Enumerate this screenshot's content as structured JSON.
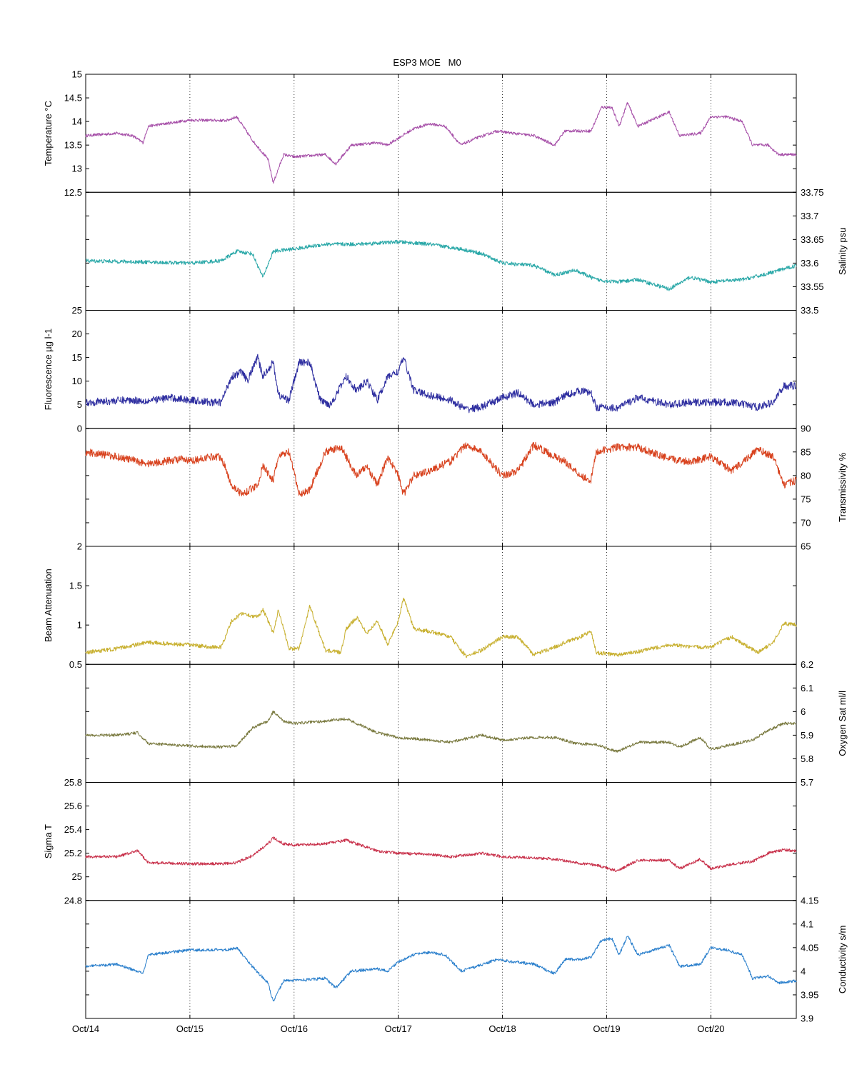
{
  "chart_data": {
    "type": "line",
    "title": "ESP3 MOE   M0",
    "x_tick_labels": [
      "Oct/14",
      "Oct/15",
      "Oct/16",
      "Oct/17",
      "Oct/18",
      "Oct/19",
      "Oct/20"
    ],
    "x_range_days": [
      0,
      6.82
    ],
    "grid": "vertical dotted at day ticks",
    "panels": [
      {
        "id": "temperature",
        "ylabel": "Temperature °C",
        "axis_side": "left",
        "color": "#a64fa8",
        "ylim": [
          12.5,
          15
        ],
        "ytick_labels": [
          "12.5",
          "13",
          "13.5",
          "14",
          "14.5",
          "15"
        ],
        "noise": 0.03,
        "x": [
          0,
          0.3,
          0.45,
          0.55,
          0.6,
          1.0,
          1.35,
          1.45,
          1.6,
          1.75,
          1.8,
          1.9,
          2.0,
          2.3,
          2.4,
          2.55,
          2.8,
          2.9,
          3.0,
          3.15,
          3.3,
          3.45,
          3.6,
          3.75,
          3.95,
          4.1,
          4.3,
          4.5,
          4.6,
          4.75,
          4.85,
          4.95,
          5.05,
          5.12,
          5.2,
          5.3,
          5.6,
          5.7,
          5.9,
          6.0,
          6.15,
          6.3,
          6.4,
          6.55,
          6.65,
          6.82
        ],
        "y": [
          13.7,
          13.75,
          13.7,
          13.55,
          13.9,
          14.03,
          14.02,
          14.1,
          13.6,
          13.2,
          12.7,
          13.3,
          13.25,
          13.3,
          13.1,
          13.5,
          13.55,
          13.5,
          13.65,
          13.85,
          13.95,
          13.9,
          13.5,
          13.65,
          13.8,
          13.75,
          13.7,
          13.5,
          13.8,
          13.8,
          13.8,
          14.3,
          14.3,
          13.9,
          14.4,
          13.9,
          14.2,
          13.7,
          13.75,
          14.1,
          14.1,
          14.0,
          13.5,
          13.5,
          13.3,
          13.3
        ]
      },
      {
        "id": "salinity",
        "ylabel": "Salinity psu",
        "axis_side": "right",
        "color": "#2aa8a8",
        "ylim": [
          33.5,
          33.75
        ],
        "ytick_labels": [
          "33.5",
          "33.55",
          "33.6",
          "33.65",
          "33.7",
          "33.75"
        ],
        "noise": 0.004,
        "x": [
          0,
          1.0,
          1.3,
          1.45,
          1.6,
          1.7,
          1.8,
          2.0,
          2.3,
          2.6,
          3.0,
          3.3,
          3.6,
          3.8,
          4.0,
          4.3,
          4.5,
          4.7,
          4.9,
          5.1,
          5.3,
          5.6,
          5.8,
          6.0,
          6.3,
          6.5,
          6.82
        ],
        "y": [
          33.605,
          33.6,
          33.605,
          33.625,
          33.62,
          33.57,
          33.625,
          33.63,
          33.64,
          33.64,
          33.645,
          33.64,
          33.63,
          33.62,
          33.6,
          33.595,
          33.575,
          33.585,
          33.565,
          33.56,
          33.565,
          33.545,
          33.57,
          33.56,
          33.565,
          33.575,
          33.595
        ]
      },
      {
        "id": "fluorescence",
        "ylabel": "Fluorescence µg l-1",
        "axis_side": "left",
        "color": "#2e2ea0",
        "ylim": [
          0,
          25
        ],
        "ytick_labels": [
          "0",
          "5",
          "10",
          "15",
          "20",
          "25"
        ],
        "noise": 0.8,
        "x": [
          0,
          0.4,
          0.6,
          0.8,
          1.0,
          1.2,
          1.3,
          1.4,
          1.5,
          1.55,
          1.65,
          1.7,
          1.8,
          1.85,
          1.95,
          2.05,
          2.15,
          2.25,
          2.35,
          2.5,
          2.6,
          2.7,
          2.8,
          2.9,
          3.0,
          3.05,
          3.15,
          3.3,
          3.5,
          3.65,
          3.8,
          4.0,
          4.15,
          4.3,
          4.5,
          4.6,
          4.75,
          4.85,
          4.9,
          5.1,
          5.3,
          5.6,
          5.8,
          6.0,
          6.2,
          6.45,
          6.6,
          6.7,
          6.82
        ],
        "y": [
          5.5,
          6.0,
          5.8,
          6.5,
          6.0,
          5.5,
          5.5,
          11.0,
          12.0,
          10.0,
          15.0,
          11.0,
          14.0,
          7.0,
          6.0,
          14.0,
          14.0,
          6.0,
          5.0,
          11.0,
          8.0,
          10.0,
          6.0,
          11.0,
          12.0,
          15.0,
          8.0,
          7.0,
          6.0,
          4.0,
          4.5,
          6.5,
          7.5,
          5.0,
          5.5,
          7.0,
          8.0,
          7.5,
          4.5,
          4.3,
          6.5,
          5.0,
          5.5,
          5.5,
          5.5,
          4.5,
          5.5,
          9.0,
          9.0
        ]
      },
      {
        "id": "transmissivity",
        "ylabel": "Transmissivity %",
        "axis_side": "right",
        "color": "#d8421e",
        "ylim": [
          65,
          90
        ],
        "ytick_labels": [
          "65",
          "70",
          "75",
          "80",
          "85",
          "90"
        ],
        "noise": 0.8,
        "x": [
          0,
          0.3,
          0.6,
          0.9,
          1.0,
          1.2,
          1.3,
          1.4,
          1.5,
          1.65,
          1.7,
          1.8,
          1.85,
          1.95,
          2.05,
          2.15,
          2.3,
          2.45,
          2.5,
          2.6,
          2.7,
          2.8,
          2.9,
          3.0,
          3.05,
          3.15,
          3.3,
          3.5,
          3.65,
          3.8,
          4.0,
          4.15,
          4.3,
          4.5,
          4.6,
          4.75,
          4.85,
          4.9,
          5.1,
          5.3,
          5.6,
          5.8,
          6.0,
          6.2,
          6.45,
          6.6,
          6.7,
          6.82
        ],
        "y": [
          85.0,
          84.0,
          82.5,
          83.5,
          83.0,
          84.0,
          84.0,
          78.0,
          76.0,
          78.0,
          82.0,
          79.0,
          84.0,
          85.0,
          76.0,
          77.0,
          85.0,
          86.0,
          84.0,
          80.0,
          82.0,
          78.0,
          84.0,
          80.0,
          76.0,
          80.0,
          81.0,
          83.0,
          86.5,
          85.0,
          80.0,
          81.0,
          86.5,
          84.0,
          83.0,
          80.0,
          79.0,
          85.0,
          86.0,
          86.0,
          83.5,
          83.0,
          84.0,
          81.0,
          85.5,
          84.0,
          78.0,
          79.0
        ]
      },
      {
        "id": "beam_attenuation",
        "ylabel": "Beam Attenuation",
        "axis_side": "left",
        "color": "#c8b030",
        "ylim": [
          0.5,
          2
        ],
        "ytick_labels": [
          "0.5",
          "1",
          "1.5",
          "2"
        ],
        "noise": 0.025,
        "x": [
          0,
          0.3,
          0.6,
          0.9,
          1.0,
          1.2,
          1.3,
          1.4,
          1.5,
          1.65,
          1.7,
          1.8,
          1.85,
          1.95,
          2.05,
          2.15,
          2.3,
          2.45,
          2.5,
          2.6,
          2.7,
          2.8,
          2.9,
          3.0,
          3.05,
          3.15,
          3.3,
          3.5,
          3.65,
          3.8,
          4.0,
          4.15,
          4.3,
          4.5,
          4.6,
          4.75,
          4.85,
          4.9,
          5.1,
          5.3,
          5.6,
          5.8,
          6.0,
          6.2,
          6.45,
          6.6,
          6.7,
          6.82
        ],
        "y": [
          0.65,
          0.7,
          0.78,
          0.75,
          0.75,
          0.72,
          0.72,
          1.05,
          1.15,
          1.1,
          1.2,
          0.9,
          1.2,
          0.7,
          0.7,
          1.25,
          0.68,
          0.65,
          0.95,
          1.1,
          0.9,
          1.05,
          0.75,
          1.05,
          1.35,
          0.95,
          0.92,
          0.85,
          0.6,
          0.68,
          0.85,
          0.85,
          0.62,
          0.72,
          0.78,
          0.85,
          0.92,
          0.65,
          0.62,
          0.66,
          0.75,
          0.72,
          0.72,
          0.85,
          0.65,
          0.78,
          1.02,
          1.0
        ]
      },
      {
        "id": "oxygen_sat",
        "ylabel": "Oxygen Sat ml/l",
        "axis_side": "right",
        "color": "#7a7a40",
        "ylim": [
          5.7,
          6.2
        ],
        "ytick_labels": [
          "5.7",
          "5.8",
          "5.9",
          "6",
          "6.1",
          "6.2"
        ],
        "noise": 0.006,
        "x": [
          0,
          0.3,
          0.5,
          0.6,
          1.0,
          1.3,
          1.45,
          1.6,
          1.75,
          1.8,
          1.9,
          2.0,
          2.3,
          2.5,
          2.8,
          3.0,
          3.3,
          3.5,
          3.8,
          4.0,
          4.3,
          4.5,
          4.7,
          4.9,
          5.1,
          5.3,
          5.6,
          5.7,
          5.9,
          6.0,
          6.3,
          6.4,
          6.55,
          6.7,
          6.82
        ],
        "y": [
          5.9,
          5.9,
          5.91,
          5.865,
          5.855,
          5.85,
          5.855,
          5.93,
          5.96,
          6.0,
          5.96,
          5.95,
          5.96,
          5.97,
          5.91,
          5.89,
          5.88,
          5.87,
          5.9,
          5.88,
          5.89,
          5.89,
          5.865,
          5.86,
          5.83,
          5.87,
          5.87,
          5.85,
          5.89,
          5.84,
          5.87,
          5.88,
          5.92,
          5.95,
          5.95
        ]
      },
      {
        "id": "sigma_t",
        "ylabel": "Sigma T",
        "axis_side": "left",
        "color": "#c8304a",
        "ylim": [
          24.8,
          25.8
        ],
        "ytick_labels": [
          "24.8",
          "25",
          "25.2",
          "25.4",
          "25.6",
          "25.8"
        ],
        "noise": 0.012,
        "x": [
          0,
          0.3,
          0.5,
          0.6,
          1.0,
          1.3,
          1.45,
          1.6,
          1.75,
          1.8,
          1.9,
          2.0,
          2.3,
          2.5,
          2.8,
          3.0,
          3.3,
          3.5,
          3.8,
          4.0,
          4.3,
          4.5,
          4.7,
          4.9,
          5.1,
          5.3,
          5.6,
          5.7,
          5.9,
          6.0,
          6.3,
          6.4,
          6.55,
          6.7,
          6.82
        ],
        "y": [
          25.17,
          25.17,
          25.22,
          25.12,
          25.11,
          25.11,
          25.12,
          25.18,
          25.28,
          25.33,
          25.28,
          25.27,
          25.28,
          25.31,
          25.22,
          25.2,
          25.19,
          25.17,
          25.2,
          25.17,
          25.16,
          25.15,
          25.12,
          25.1,
          25.05,
          25.14,
          25.14,
          25.07,
          25.15,
          25.07,
          25.12,
          25.13,
          25.2,
          25.23,
          25.22
        ]
      },
      {
        "id": "conductivity",
        "ylabel": "Conductivity s/m",
        "axis_side": "right",
        "color": "#2a7fcc",
        "ylim": [
          3.9,
          4.15
        ],
        "ytick_labels": [
          "3.9",
          "3.95",
          "4",
          "4.05",
          "4.1",
          "4.15"
        ],
        "noise": 0.003,
        "x": [
          0,
          0.3,
          0.55,
          0.6,
          1.0,
          1.35,
          1.45,
          1.6,
          1.75,
          1.8,
          1.9,
          2.0,
          2.3,
          2.4,
          2.55,
          2.8,
          2.9,
          3.0,
          3.15,
          3.3,
          3.45,
          3.6,
          3.75,
          3.95,
          4.1,
          4.3,
          4.5,
          4.6,
          4.75,
          4.85,
          4.95,
          5.05,
          5.12,
          5.2,
          5.3,
          5.6,
          5.7,
          5.9,
          6.0,
          6.15,
          6.3,
          6.4,
          6.55,
          6.65,
          6.82
        ],
        "y": [
          4.01,
          4.015,
          3.995,
          4.035,
          4.045,
          4.045,
          4.05,
          4.01,
          3.975,
          3.935,
          3.98,
          3.98,
          3.985,
          3.965,
          4.0,
          4.005,
          4.0,
          4.02,
          4.035,
          4.04,
          4.035,
          4.0,
          4.01,
          4.025,
          4.02,
          4.015,
          3.995,
          4.025,
          4.025,
          4.03,
          4.065,
          4.07,
          4.035,
          4.075,
          4.035,
          4.055,
          4.01,
          4.015,
          4.05,
          4.045,
          4.035,
          3.985,
          3.99,
          3.975,
          3.98
        ]
      }
    ]
  }
}
